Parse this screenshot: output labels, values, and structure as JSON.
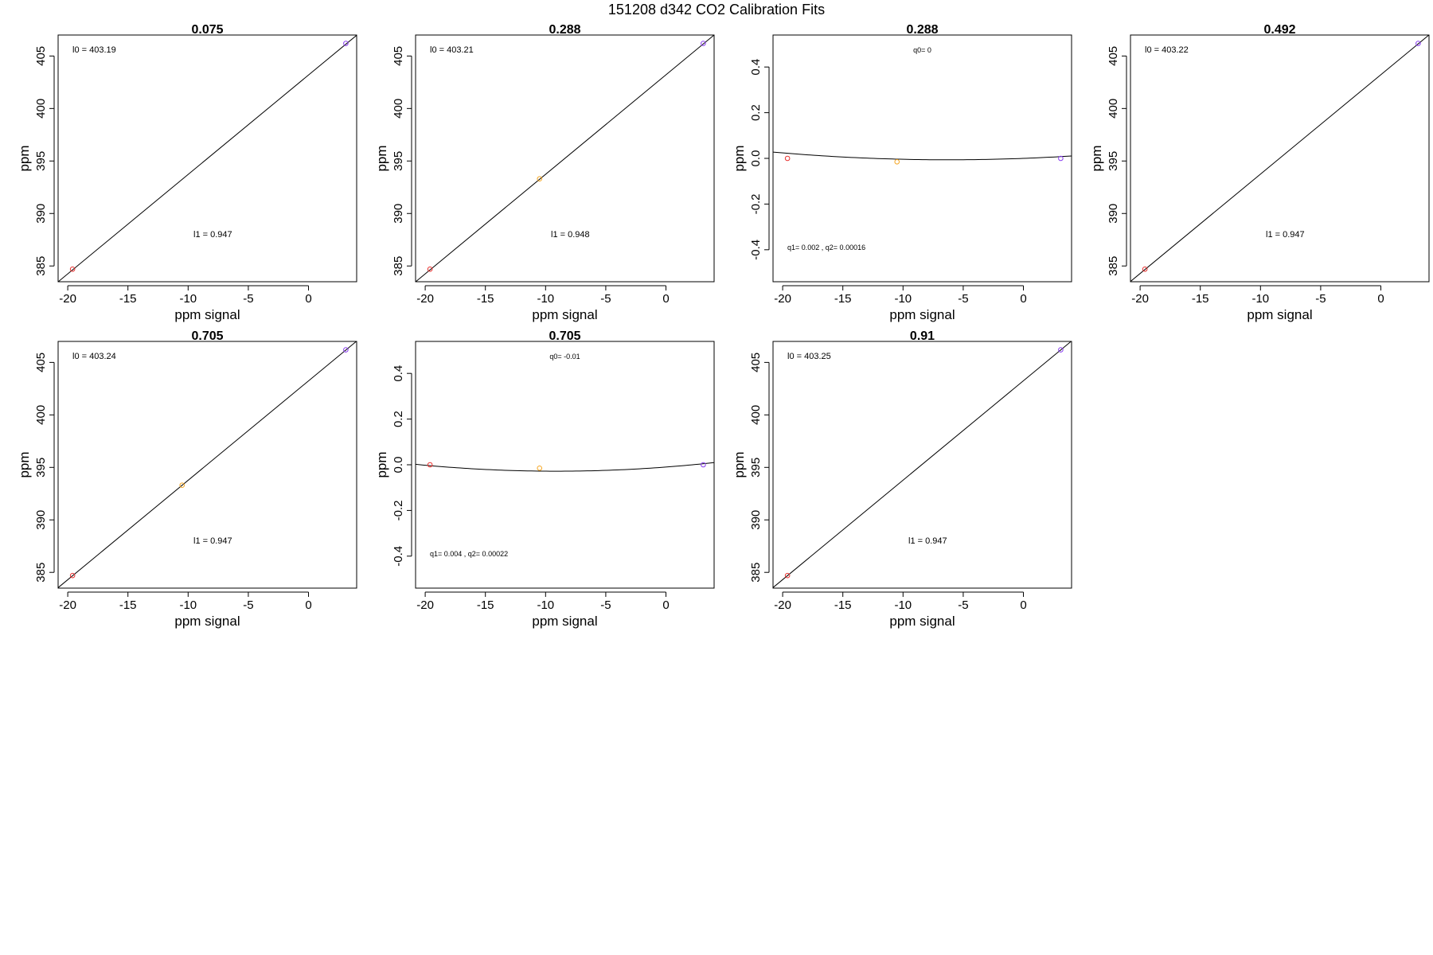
{
  "figure_title": "151208   d342   CO2 Calibration Fits",
  "colors": {
    "low_point": "#e8312f",
    "mid_point": "#f5a623",
    "high_point": "#8a3ff0",
    "fit_line": "#000000",
    "frame": "#000000"
  },
  "chart_data": [
    {
      "type": "scatter",
      "title": "0.075",
      "xlabel": "ppm signal",
      "ylabel": "ppm",
      "xlim": [
        -20.8,
        4
      ],
      "ylim": [
        383.5,
        407
      ],
      "xticks": [
        -20,
        -15,
        -10,
        -5,
        0
      ],
      "yticks": [
        385,
        390,
        395,
        400,
        405
      ],
      "points": [
        {
          "x": -19.6,
          "y": 384.7,
          "color": "low"
        },
        {
          "x": 3.1,
          "y": 406.2,
          "color": "high"
        }
      ],
      "fit": {
        "kind": "line",
        "intercept": 403.19,
        "slope": 0.947
      },
      "annotations": [
        "l0 =  403.19",
        "l1 =  0.947"
      ]
    },
    {
      "type": "scatter",
      "title": "0.288",
      "xlabel": "ppm signal",
      "ylabel": "ppm",
      "xlim": [
        -20.8,
        4
      ],
      "ylim": [
        383.5,
        407
      ],
      "xticks": [
        -20,
        -15,
        -10,
        -5,
        0
      ],
      "yticks": [
        385,
        390,
        395,
        400,
        405
      ],
      "points": [
        {
          "x": -19.6,
          "y": 384.7,
          "color": "low"
        },
        {
          "x": -10.5,
          "y": 393.3,
          "color": "mid"
        },
        {
          "x": 3.1,
          "y": 406.2,
          "color": "high"
        }
      ],
      "fit": {
        "kind": "line",
        "intercept": 403.21,
        "slope": 0.948
      },
      "annotations": [
        "l0 =  403.21",
        "l1 =  0.948"
      ]
    },
    {
      "type": "scatter",
      "title": "0.288",
      "xlabel": "ppm signal",
      "ylabel": "ppm",
      "xlim": [
        -20.8,
        4
      ],
      "ylim": [
        -0.54,
        0.54
      ],
      "xticks": [
        -20,
        -15,
        -10,
        -5,
        0
      ],
      "yticks": [
        -0.4,
        -0.2,
        0.0,
        0.2,
        0.4
      ],
      "points": [
        {
          "x": -19.6,
          "y": 0.0,
          "color": "low"
        },
        {
          "x": -10.5,
          "y": -0.015,
          "color": "mid"
        },
        {
          "x": 3.1,
          "y": 0.0,
          "color": "high"
        }
      ],
      "fit": {
        "kind": "quadratic",
        "q0": 0,
        "q1": 0.002,
        "q2": 0.00016
      },
      "annotations": [
        "q0= 0",
        "q1= 0.002 , q2= 0.00016"
      ]
    },
    {
      "type": "scatter",
      "title": "0.492",
      "xlabel": "ppm signal",
      "ylabel": "ppm",
      "xlim": [
        -20.8,
        4
      ],
      "ylim": [
        383.5,
        407
      ],
      "xticks": [
        -20,
        -15,
        -10,
        -5,
        0
      ],
      "yticks": [
        385,
        390,
        395,
        400,
        405
      ],
      "points": [
        {
          "x": -19.6,
          "y": 384.7,
          "color": "low"
        },
        {
          "x": 3.1,
          "y": 406.2,
          "color": "high"
        }
      ],
      "fit": {
        "kind": "line",
        "intercept": 403.22,
        "slope": 0.947
      },
      "annotations": [
        "l0 =  403.22",
        "l1 =  0.947"
      ]
    },
    {
      "type": "scatter",
      "title": "0.705",
      "xlabel": "ppm signal",
      "ylabel": "ppm",
      "xlim": [
        -20.8,
        4
      ],
      "ylim": [
        383.5,
        407
      ],
      "xticks": [
        -20,
        -15,
        -10,
        -5,
        0
      ],
      "yticks": [
        385,
        390,
        395,
        400,
        405
      ],
      "points": [
        {
          "x": -19.6,
          "y": 384.7,
          "color": "low"
        },
        {
          "x": -10.5,
          "y": 393.3,
          "color": "mid"
        },
        {
          "x": 3.1,
          "y": 406.2,
          "color": "high"
        }
      ],
      "fit": {
        "kind": "line",
        "intercept": 403.24,
        "slope": 0.947
      },
      "annotations": [
        "l0 =  403.24",
        "l1 =  0.947"
      ]
    },
    {
      "type": "scatter",
      "title": "0.705",
      "xlabel": "ppm signal",
      "ylabel": "ppm",
      "xlim": [
        -20.8,
        4
      ],
      "ylim": [
        -0.54,
        0.54
      ],
      "xticks": [
        -20,
        -15,
        -10,
        -5,
        0
      ],
      "yticks": [
        -0.4,
        -0.2,
        0.0,
        0.2,
        0.4
      ],
      "points": [
        {
          "x": -19.6,
          "y": 0.0,
          "color": "low"
        },
        {
          "x": -10.5,
          "y": -0.015,
          "color": "mid"
        },
        {
          "x": 3.1,
          "y": 0.0,
          "color": "high"
        }
      ],
      "fit": {
        "kind": "quadratic",
        "q0": -0.01,
        "q1": 0.004,
        "q2": 0.00022
      },
      "annotations": [
        "q0= -0.01",
        "q1= 0.004 , q2= 0.00022"
      ]
    },
    {
      "type": "scatter",
      "title": "0.91",
      "xlabel": "ppm signal",
      "ylabel": "ppm",
      "xlim": [
        -20.8,
        4
      ],
      "ylim": [
        383.5,
        407
      ],
      "xticks": [
        -20,
        -15,
        -10,
        -5,
        0
      ],
      "yticks": [
        385,
        390,
        395,
        400,
        405
      ],
      "points": [
        {
          "x": -19.6,
          "y": 384.7,
          "color": "low"
        },
        {
          "x": 3.1,
          "y": 406.2,
          "color": "high"
        }
      ],
      "fit": {
        "kind": "line",
        "intercept": 403.25,
        "slope": 0.947
      },
      "annotations": [
        "l0 =  403.25",
        "l1 =  0.947"
      ]
    }
  ]
}
